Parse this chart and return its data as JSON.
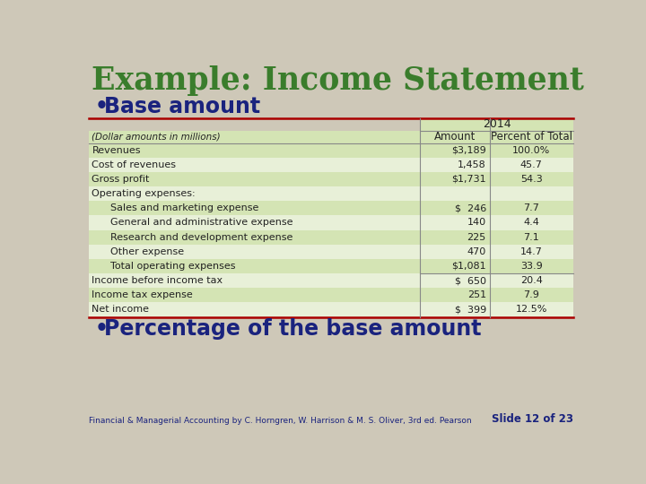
{
  "title": "Example: Income Statement",
  "bullet1": "Base amount",
  "bullet2": "Percentage of the base amount",
  "footer": "Financial & Managerial Accounting by C. Horngren, W. Harrison & M. S. Oliver, 3rd ed. Pearson",
  "slide_number": "Slide 12 of 23",
  "year_header": "2014",
  "col_headers": [
    "(Dollar amounts in millions)",
    "Amount",
    "Percent of Total"
  ],
  "rows": [
    {
      "label": "Revenues",
      "indent": 0,
      "amount": "$3,189",
      "percent": "100.0%",
      "shade": true
    },
    {
      "label": "Cost of revenues",
      "indent": 0,
      "amount": "1,458",
      "percent": "45.7",
      "shade": false
    },
    {
      "label": "Gross profit",
      "indent": 0,
      "amount": "$1,731",
      "percent": "54.3",
      "shade": true
    },
    {
      "label": "Operating expenses:",
      "indent": 0,
      "amount": "",
      "percent": "",
      "shade": false
    },
    {
      "label": "Sales and marketing expense",
      "indent": 1,
      "amount": "$  246",
      "percent": "7.7",
      "shade": true
    },
    {
      "label": "General and administrative expense",
      "indent": 1,
      "amount": "140",
      "percent": "4.4",
      "shade": false
    },
    {
      "label": "Research and development expense",
      "indent": 1,
      "amount": "225",
      "percent": "7.1",
      "shade": true
    },
    {
      "label": "Other expense",
      "indent": 1,
      "amount": "470",
      "percent": "14.7",
      "shade": false
    },
    {
      "label": "Total operating expenses",
      "indent": 1,
      "amount": "$1,081",
      "percent": "33.9",
      "shade": true
    },
    {
      "label": "Income before income tax",
      "indent": 0,
      "amount": "$  650",
      "percent": "20.4",
      "shade": false
    },
    {
      "label": "Income tax expense",
      "indent": 0,
      "amount": "251",
      "percent": "7.9",
      "shade": true
    },
    {
      "label": "Net income",
      "indent": 0,
      "amount": "$  399",
      "percent": "12.5%",
      "shade": false
    }
  ],
  "bg_color": "#cec8b8",
  "table_shade_color": "#d4e4b4",
  "table_noshade_color": "#e8f0d8",
  "header_bg": "#d4e4b4",
  "title_color": "#3a7d2c",
  "bullet_color": "#1a237e",
  "footer_color": "#1a237e",
  "slide_num_color": "#1a237e",
  "table_border_color": "#aa0000",
  "col_divider_color": "#888888",
  "text_color": "#222222",
  "header_text_color": "#222222"
}
